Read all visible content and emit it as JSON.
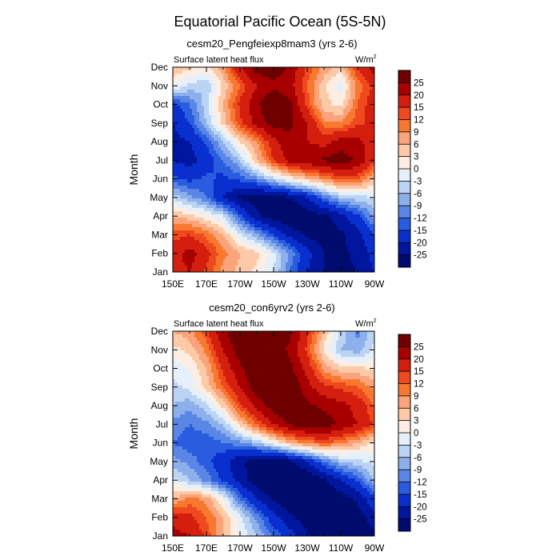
{
  "title": "Equatorial Pacific Ocean (5S-5N)",
  "panel_left_label": "Surface latent heat flux",
  "units": {
    "base": "W/m",
    "sup": "2"
  },
  "ylabel": "Month",
  "months": [
    "Jan",
    "Feb",
    "Mar",
    "Apr",
    "May",
    "Jun",
    "Jul",
    "Aug",
    "Sep",
    "Oct",
    "Nov",
    "Dec"
  ],
  "xticks": [
    "150E",
    "170E",
    "170W",
    "150W",
    "130W",
    "110W",
    "90W"
  ],
  "colorbar": {
    "levels": [
      "25",
      "20",
      "15",
      "12",
      "9",
      "6",
      "3",
      "0",
      "-3",
      "-6",
      "-9",
      "-12",
      "-15",
      "-20",
      "-25"
    ],
    "colors": [
      "#6e0000",
      "#a80000",
      "#d41f0f",
      "#ee4a1d",
      "#f9782f",
      "#fba37a",
      "#fdcaa8",
      "#fdeee4",
      "#e6f0fb",
      "#bcd4f3",
      "#8db0ec",
      "#5a86e6",
      "#2a5ce0",
      "#0a2fcf",
      "#00169e",
      "#000b6e"
    ]
  },
  "chart_data": [
    {
      "type": "heatmap",
      "subtitle": "cesm20_Pengfeiexp8mam3 (yrs 2-6)",
      "variable": "Surface latent heat flux",
      "units": "W/m2",
      "xlabel": "",
      "ylabel": "Month",
      "xlim": [
        "150E",
        "90W"
      ],
      "ylim": [
        "Jan",
        "Dec"
      ],
      "xgrid_lon": [
        150,
        160,
        170,
        180,
        190,
        200,
        210,
        220,
        230,
        240,
        250,
        260,
        270
      ],
      "ygrid": [
        "Jan",
        "Feb",
        "Mar",
        "Apr",
        "May",
        "Jun",
        "Jul",
        "Aug",
        "Sep",
        "Oct",
        "Nov",
        "Dec"
      ],
      "z": [
        [
          18,
          20,
          14,
          8,
          5,
          2,
          -3,
          -12,
          -20,
          -25,
          -26,
          -25,
          -20
        ],
        [
          18,
          22,
          17,
          10,
          6,
          4,
          -2,
          -10,
          -18,
          -25,
          -26,
          -24,
          -18
        ],
        [
          13,
          15,
          11,
          6,
          -2,
          -8,
          -15,
          -22,
          -26,
          -28,
          -26,
          -22,
          -15
        ],
        [
          6,
          4,
          1,
          -3,
          -14,
          -24,
          -28,
          -30,
          -28,
          -26,
          -22,
          -16,
          -8
        ],
        [
          -4,
          -8,
          -12,
          -20,
          -26,
          -28,
          -28,
          -25,
          -20,
          -12,
          -6,
          -4,
          -3
        ],
        [
          -14,
          -16,
          -14,
          -16,
          -14,
          -10,
          -4,
          1,
          5,
          9,
          13,
          12,
          5
        ],
        [
          -20,
          -22,
          -18,
          -12,
          -6,
          5,
          15,
          22,
          24,
          26,
          28,
          24,
          16
        ],
        [
          -22,
          -20,
          -14,
          -6,
          3,
          9,
          18,
          24,
          20,
          18,
          22,
          22,
          16
        ],
        [
          -20,
          -15,
          -6,
          4,
          14,
          22,
          28,
          26,
          20,
          10,
          9,
          14,
          16
        ],
        [
          -16,
          -12,
          -4,
          6,
          16,
          24,
          30,
          26,
          14,
          4,
          2,
          12,
          18
        ],
        [
          0,
          -4,
          -6,
          4,
          12,
          20,
          24,
          22,
          12,
          4,
          -2,
          10,
          16
        ],
        [
          6,
          4,
          2,
          8,
          20,
          28,
          28,
          24,
          14,
          8,
          4,
          16,
          22
        ]
      ]
    },
    {
      "type": "heatmap",
      "subtitle": "cesm20_con6yrv2 (yrs 2-6)",
      "variable": "Surface latent heat flux",
      "units": "W/m2",
      "xlabel": "",
      "ylabel": "Month",
      "xlim": [
        "150E",
        "90W"
      ],
      "ylim": [
        "Jan",
        "Dec"
      ],
      "xgrid_lon": [
        150,
        160,
        170,
        180,
        190,
        200,
        210,
        220,
        230,
        240,
        250,
        260,
        270
      ],
      "ygrid": [
        "Jan",
        "Feb",
        "Mar",
        "Apr",
        "May",
        "Jun",
        "Jul",
        "Aug",
        "Sep",
        "Oct",
        "Nov",
        "Dec"
      ],
      "z": [
        [
          22,
          20,
          14,
          6,
          0,
          -6,
          -12,
          -18,
          -24,
          -28,
          -30,
          -30,
          -26
        ],
        [
          18,
          16,
          12,
          6,
          -2,
          -10,
          -18,
          -24,
          -28,
          -30,
          -30,
          -28,
          -22
        ],
        [
          6,
          10,
          8,
          0,
          -12,
          -20,
          -26,
          -30,
          -32,
          -30,
          -28,
          -24,
          -16
        ],
        [
          -2,
          -6,
          -10,
          -16,
          -22,
          -28,
          -32,
          -32,
          -30,
          -26,
          -20,
          -14,
          -6
        ],
        [
          -8,
          -10,
          -14,
          -18,
          -24,
          -28,
          -30,
          -26,
          -20,
          -12,
          -6,
          -4,
          -2
        ],
        [
          -12,
          -14,
          -14,
          -12,
          -10,
          -6,
          0,
          6,
          10,
          12,
          10,
          6,
          2
        ],
        [
          -10,
          -12,
          -10,
          -6,
          4,
          12,
          20,
          26,
          28,
          28,
          24,
          20,
          14
        ],
        [
          -6,
          -8,
          -4,
          4,
          14,
          22,
          28,
          30,
          26,
          24,
          22,
          18,
          12
        ],
        [
          -4,
          -2,
          4,
          12,
          20,
          28,
          32,
          30,
          22,
          16,
          14,
          12,
          8
        ],
        [
          -2,
          0,
          6,
          16,
          24,
          30,
          30,
          26,
          18,
          8,
          4,
          4,
          2
        ],
        [
          2,
          4,
          10,
          20,
          28,
          32,
          28,
          24,
          14,
          2,
          -6,
          -8,
          -2
        ],
        [
          6,
          8,
          14,
          24,
          30,
          34,
          32,
          26,
          16,
          6,
          -4,
          -10,
          -4
        ]
      ]
    }
  ]
}
